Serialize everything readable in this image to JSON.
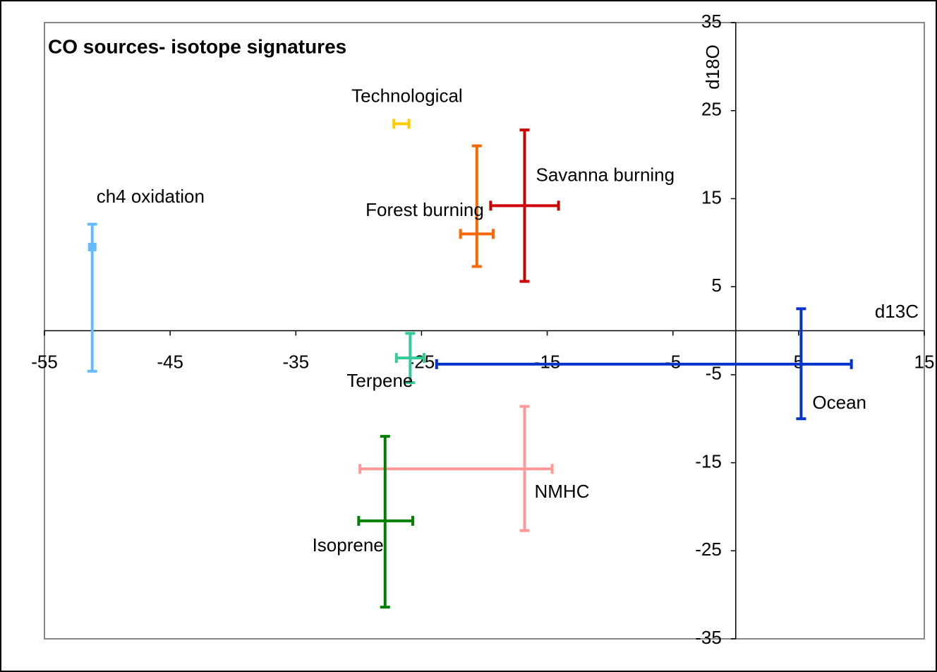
{
  "chart_data": {
    "type": "scatter",
    "title": "CO sources- isotope signatures",
    "x_label": "d13C",
    "y_label": "d18O",
    "xlim": [
      -55,
      15
    ],
    "xticks": [
      -55,
      -45,
      -35,
      -25,
      -15,
      -5,
      5,
      15
    ],
    "ylim": [
      -35,
      35
    ],
    "yticks": [
      35,
      25,
      15,
      5,
      -5,
      -15,
      -25,
      -35
    ],
    "series": [
      {
        "name": "ch4 oxidation",
        "color": "#66bbff",
        "x": -51.2,
        "y": 9.5,
        "xerr": null,
        "yerr": [
          14.1,
          2.6
        ],
        "marker": true
      },
      {
        "name": "Technological",
        "color": "#ffcc00",
        "x": -26.6,
        "y": 23.5,
        "xerr": [
          0.6,
          0.6
        ],
        "yerr": null,
        "marker": false
      },
      {
        "name": "Forest burning",
        "color": "#ff6600",
        "x": -20.6,
        "y": 11.0,
        "xerr": [
          1.3,
          1.3
        ],
        "yerr": [
          3.7,
          10.0
        ],
        "marker": false
      },
      {
        "name": "Savanna burning",
        "color": "#cc0000",
        "x": -16.8,
        "y": 14.2,
        "xerr": [
          2.7,
          2.7
        ],
        "yerr": [
          8.6,
          8.6
        ],
        "marker": false
      },
      {
        "name": "Terpene",
        "color": "#33cc99",
        "x": -25.9,
        "y": -3.1,
        "xerr": [
          1.1,
          1.1
        ],
        "yerr": [
          2.8,
          2.8
        ],
        "marker": false
      },
      {
        "name": "Ocean",
        "color": "#0033cc",
        "x": 5.2,
        "y": -3.8,
        "xerr": [
          29.0,
          4.0
        ],
        "yerr": [
          6.2,
          6.3
        ],
        "marker": false
      },
      {
        "name": "NMHC",
        "color": "#ff9999",
        "x": -16.8,
        "y": -15.7,
        "xerr": [
          13.1,
          2.2
        ],
        "yerr": [
          7.0,
          7.1
        ],
        "marker": false
      },
      {
        "name": "Isoprene",
        "color": "#008000",
        "x": -27.9,
        "y": -21.6,
        "xerr": [
          2.1,
          2.2
        ],
        "yerr": [
          9.8,
          9.6
        ],
        "marker": false
      }
    ]
  }
}
